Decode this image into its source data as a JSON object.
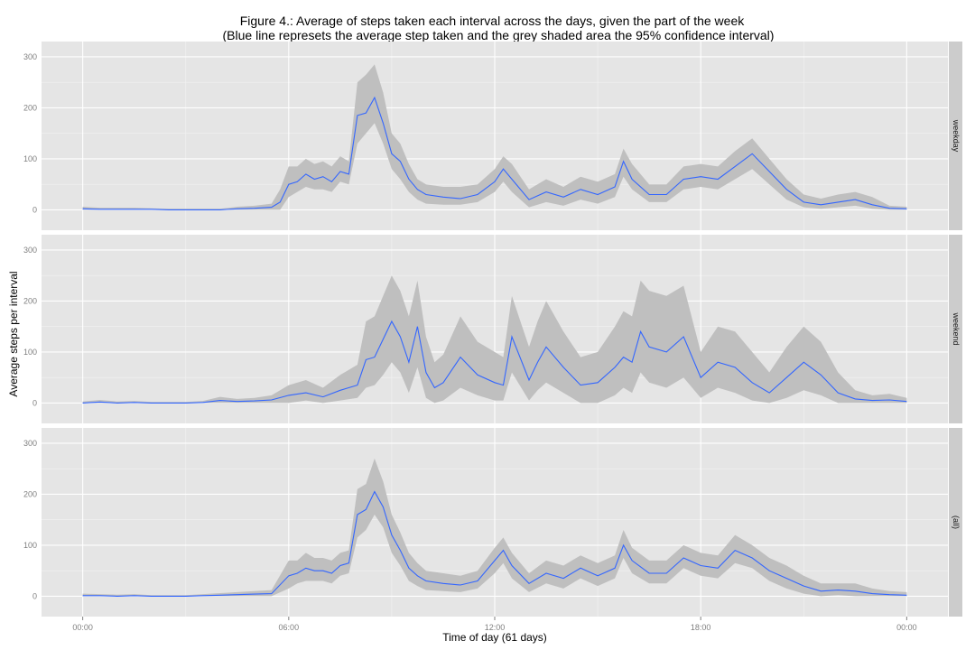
{
  "title_line1": "Figure 4.: Average of steps taken each interval across the days, given the part of the week",
  "title_line2": "(Blue line represets the average step taken and the grey shaded area the 95% confidence interval)",
  "chart_data": {
    "type": "line",
    "xlabel": "Time of day (61 days)",
    "ylabel": "Average steps per interval",
    "x_ticks": [
      "00:00",
      "06:00",
      "12:00",
      "18:00",
      "00:00"
    ],
    "x_tick_hours": [
      0,
      6,
      12,
      18,
      24
    ],
    "xlim_hours": [
      -1.2,
      25.2
    ],
    "y_ticks": [
      0,
      100,
      200,
      300
    ],
    "ylim": [
      -40,
      330
    ],
    "grid": true,
    "colors": {
      "line": "#3366FF",
      "ribbon": "#BFBFBF",
      "panel": "#E5E5E5",
      "strip": "#CCCCCC",
      "grid": "#FFFFFF"
    },
    "panels": [
      {
        "strip": "weekday",
        "hours": [
          0,
          0.5,
          1,
          1.5,
          2,
          2.5,
          3,
          3.5,
          4,
          4.5,
          5,
          5.5,
          5.75,
          6,
          6.25,
          6.5,
          6.75,
          7,
          7.25,
          7.5,
          7.75,
          8,
          8.25,
          8.5,
          8.75,
          9,
          9.25,
          9.5,
          9.75,
          10,
          10.5,
          11,
          11.5,
          12,
          12.25,
          12.5,
          13,
          13.5,
          14,
          14.5,
          15,
          15.5,
          15.75,
          16,
          16.5,
          17,
          17.5,
          18,
          18.5,
          19,
          19.5,
          20,
          20.5,
          21,
          21.5,
          22,
          22.5,
          23,
          23.5,
          24
        ],
        "mean": [
          2,
          1,
          1,
          1,
          1,
          0,
          0,
          0,
          0,
          2,
          3,
          5,
          15,
          50,
          55,
          70,
          60,
          65,
          55,
          75,
          70,
          185,
          190,
          220,
          170,
          110,
          95,
          60,
          40,
          30,
          25,
          22,
          30,
          55,
          80,
          60,
          20,
          35,
          25,
          40,
          30,
          45,
          95,
          60,
          30,
          30,
          60,
          65,
          60,
          85,
          110,
          75,
          40,
          15,
          10,
          15,
          20,
          10,
          3,
          2
        ],
        "lower": [
          0,
          0,
          0,
          0,
          0,
          0,
          0,
          0,
          0,
          0,
          0,
          0,
          0,
          25,
          35,
          45,
          40,
          40,
          35,
          55,
          50,
          130,
          150,
          170,
          130,
          80,
          60,
          35,
          20,
          12,
          10,
          10,
          15,
          35,
          55,
          35,
          5,
          15,
          8,
          20,
          12,
          25,
          65,
          40,
          15,
          15,
          40,
          45,
          40,
          60,
          80,
          50,
          20,
          5,
          2,
          5,
          8,
          2,
          0,
          0
        ],
        "upper": [
          6,
          4,
          4,
          4,
          3,
          2,
          2,
          2,
          2,
          6,
          8,
          12,
          40,
          85,
          85,
          100,
          90,
          95,
          85,
          105,
          95,
          250,
          265,
          285,
          230,
          150,
          130,
          90,
          60,
          50,
          45,
          45,
          50,
          80,
          105,
          90,
          40,
          60,
          45,
          65,
          55,
          70,
          120,
          90,
          50,
          50,
          85,
          90,
          85,
          115,
          140,
          100,
          60,
          30,
          22,
          30,
          35,
          25,
          8,
          6
        ]
      },
      {
        "strip": "weekend",
        "hours": [
          0,
          0.5,
          1,
          1.5,
          2,
          2.5,
          3,
          3.5,
          4,
          4.5,
          5,
          5.5,
          6,
          6.5,
          7,
          7.5,
          8,
          8.25,
          8.5,
          8.75,
          9,
          9.25,
          9.5,
          9.75,
          10,
          10.25,
          10.5,
          11,
          11.5,
          12,
          12.25,
          12.5,
          13,
          13.25,
          13.5,
          14,
          14.5,
          15,
          15.5,
          15.75,
          16,
          16.25,
          16.5,
          17,
          17.5,
          18,
          18.5,
          19,
          19.5,
          20,
          20.5,
          21,
          21.5,
          22,
          22.5,
          23,
          23.5,
          24
        ],
        "mean": [
          0,
          2,
          0,
          1,
          0,
          0,
          0,
          1,
          5,
          3,
          4,
          6,
          15,
          20,
          12,
          25,
          35,
          85,
          90,
          125,
          160,
          130,
          80,
          150,
          60,
          30,
          40,
          90,
          55,
          40,
          35,
          130,
          45,
          80,
          110,
          70,
          35,
          40,
          70,
          90,
          80,
          140,
          110,
          100,
          130,
          50,
          80,
          70,
          40,
          20,
          50,
          80,
          55,
          20,
          8,
          5,
          6,
          3
        ],
        "lower": [
          0,
          0,
          0,
          0,
          0,
          0,
          0,
          0,
          0,
          0,
          0,
          0,
          0,
          5,
          0,
          5,
          10,
          30,
          35,
          55,
          80,
          60,
          20,
          70,
          10,
          0,
          5,
          30,
          15,
          5,
          5,
          60,
          5,
          25,
          40,
          20,
          0,
          0,
          15,
          30,
          20,
          60,
          40,
          30,
          50,
          10,
          30,
          20,
          5,
          0,
          10,
          25,
          15,
          0,
          0,
          0,
          0,
          0
        ],
        "upper": [
          3,
          6,
          3,
          4,
          2,
          2,
          2,
          4,
          12,
          8,
          10,
          15,
          35,
          45,
          30,
          55,
          75,
          160,
          170,
          210,
          250,
          220,
          170,
          240,
          130,
          80,
          95,
          170,
          120,
          100,
          90,
          210,
          110,
          160,
          200,
          140,
          90,
          100,
          150,
          180,
          170,
          240,
          220,
          210,
          230,
          100,
          150,
          140,
          100,
          60,
          110,
          150,
          120,
          60,
          25,
          15,
          18,
          10
        ]
      },
      {
        "strip": "(all)",
        "hours": [
          0,
          0.5,
          1,
          1.5,
          2,
          2.5,
          3,
          3.5,
          4,
          4.5,
          5,
          5.5,
          6,
          6.25,
          6.5,
          6.75,
          7,
          7.25,
          7.5,
          7.75,
          8,
          8.25,
          8.5,
          8.75,
          9,
          9.25,
          9.5,
          9.75,
          10,
          10.5,
          11,
          11.5,
          12,
          12.25,
          12.5,
          13,
          13.5,
          14,
          14.5,
          15,
          15.5,
          15.75,
          16,
          16.5,
          17,
          17.5,
          18,
          18.5,
          19,
          19.5,
          20,
          20.5,
          21,
          21.5,
          22,
          22.5,
          23,
          23.5,
          24
        ],
        "mean": [
          1,
          1,
          0,
          1,
          0,
          0,
          0,
          1,
          2,
          3,
          4,
          5,
          40,
          45,
          55,
          50,
          50,
          45,
          60,
          65,
          160,
          170,
          205,
          175,
          120,
          90,
          55,
          40,
          30,
          25,
          22,
          30,
          70,
          90,
          60,
          25,
          45,
          35,
          55,
          40,
          55,
          100,
          70,
          45,
          45,
          75,
          60,
          55,
          90,
          75,
          50,
          35,
          20,
          10,
          12,
          10,
          5,
          3,
          2
        ],
        "lower": [
          0,
          0,
          0,
          0,
          0,
          0,
          0,
          0,
          0,
          0,
          0,
          0,
          15,
          25,
          30,
          30,
          30,
          25,
          40,
          45,
          115,
          130,
          160,
          135,
          85,
          60,
          30,
          20,
          12,
          10,
          8,
          15,
          45,
          65,
          35,
          8,
          25,
          15,
          35,
          20,
          35,
          75,
          45,
          25,
          25,
          55,
          40,
          35,
          65,
          55,
          30,
          15,
          5,
          0,
          2,
          0,
          0,
          0,
          0
        ],
        "upper": [
          5,
          4,
          3,
          4,
          2,
          2,
          2,
          4,
          6,
          8,
          10,
          12,
          70,
          70,
          85,
          75,
          75,
          70,
          85,
          90,
          210,
          220,
          270,
          225,
          160,
          125,
          85,
          65,
          50,
          45,
          40,
          50,
          95,
          115,
          85,
          45,
          70,
          60,
          80,
          65,
          80,
          130,
          95,
          70,
          70,
          100,
          85,
          80,
          120,
          100,
          75,
          60,
          40,
          25,
          25,
          25,
          15,
          10,
          8
        ]
      }
    ]
  }
}
